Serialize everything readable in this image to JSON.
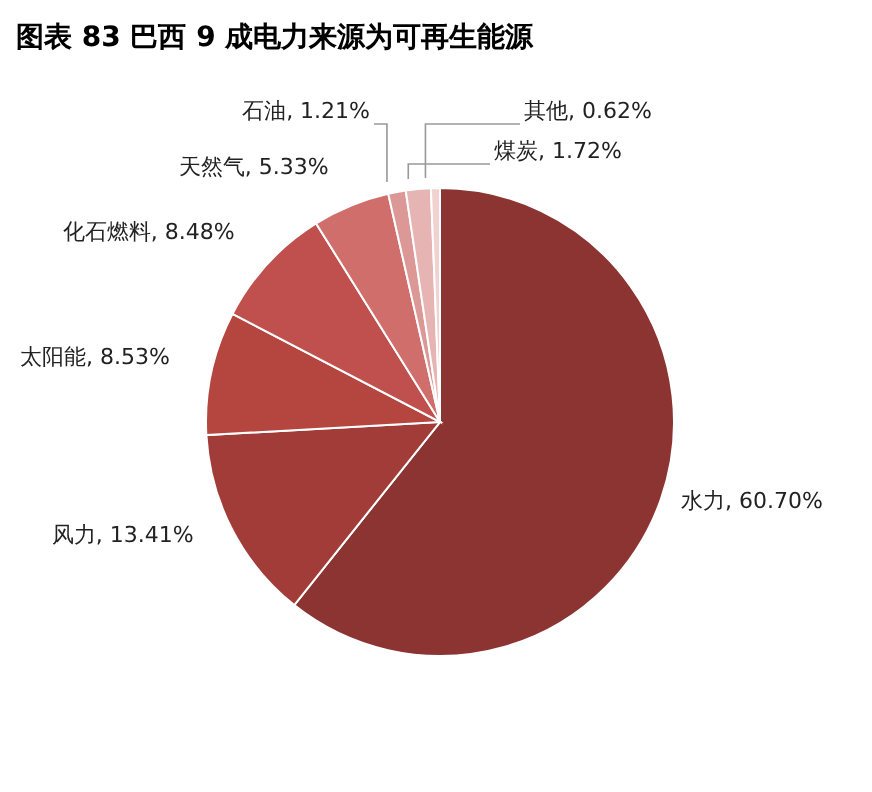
{
  "chart_data": {
    "type": "pie",
    "title": "图表 83  巴西 9 成电力来源为可再生能源",
    "categories": [
      "水力",
      "风力",
      "太阳能",
      "化石燃料",
      "天然气",
      "石油",
      "煤炭",
      "其他"
    ],
    "values": [
      60.7,
      13.41,
      8.53,
      8.48,
      5.33,
      1.21,
      1.72,
      0.62
    ],
    "value_labels": [
      "60.70%",
      "13.41%",
      "8.53%",
      "8.48%",
      "5.33%",
      "1.21%",
      "1.72%",
      "0.62%"
    ],
    "colors": [
      "#8b3431",
      "#a23c39",
      "#b4453f",
      "#c0504d",
      "#cf6e6b",
      "#dc9896",
      "#e6b4b2",
      "#f0d2d0"
    ]
  }
}
